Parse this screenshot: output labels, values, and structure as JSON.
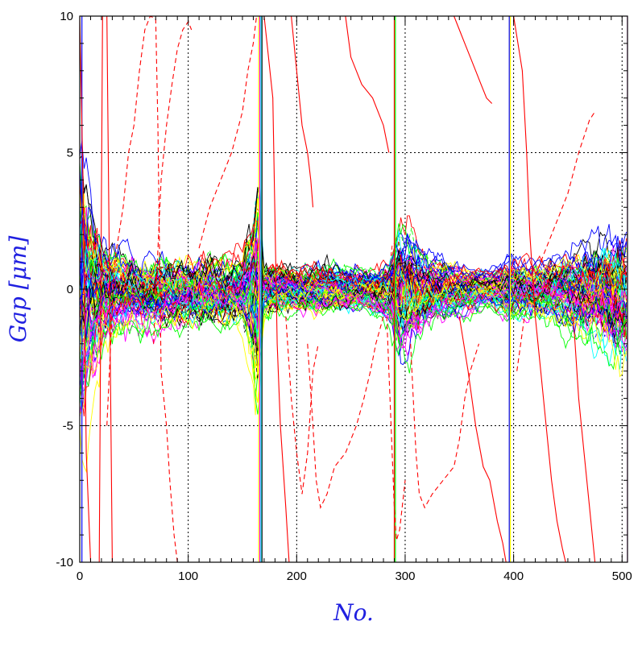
{
  "chart_data": {
    "type": "line",
    "title": "",
    "xlabel": "No.",
    "ylabel": "Gap [μm]",
    "label_color": "#2020e0",
    "xlim": [
      0,
      505
    ],
    "ylim": [
      -10,
      10
    ],
    "grid": true,
    "grid_style": "dotted",
    "x_ticks": [
      0,
      100,
      200,
      300,
      400,
      500
    ],
    "y_ticks": [
      -10,
      -5,
      0,
      5,
      10
    ],
    "x_tick_labels": [
      "0",
      "100",
      "200",
      "300",
      "400",
      "500"
    ],
    "y_tick_labels": [
      "-10",
      "-5",
      "0",
      "5",
      "10"
    ],
    "line_colors": [
      "#000000",
      "#ff0000",
      "#00ff00",
      "#0000ff",
      "#ffff00",
      "#ff00ff",
      "#00ffff"
    ],
    "series_count": 90,
    "envelope_note": "dense bundle of ~90 traces near 0; bursts near No. 0, 165, 290, 395, 505",
    "envelope": {
      "x": [
        0,
        10,
        25,
        50,
        100,
        150,
        165,
        170,
        200,
        230,
        260,
        285,
        295,
        320,
        350,
        380,
        395,
        420,
        450,
        480,
        505
      ],
      "amplitude": [
        8,
        5,
        2.5,
        1.8,
        1.8,
        1.7,
        6,
        1.5,
        1.2,
        1.4,
        1.1,
        1.5,
        3.5,
        1.8,
        1.2,
        0.9,
        1.5,
        1.3,
        1.8,
        2.6,
        3.5
      ]
    },
    "outlier_series": [
      {
        "color": "#ff0000",
        "dashed": false,
        "points": [
          [
            0,
            10
          ],
          [
            3,
            4
          ],
          [
            6,
            -6
          ],
          [
            10,
            -10
          ],
          [
            18,
            -10
          ],
          [
            21,
            10
          ],
          [
            25,
            10
          ],
          [
            30,
            -10
          ]
        ]
      },
      {
        "color": "#ff0000",
        "dashed": true,
        "points": [
          [
            25,
            -5
          ],
          [
            32,
            1
          ],
          [
            40,
            3
          ],
          [
            45,
            5
          ],
          [
            50,
            6
          ],
          [
            55,
            8
          ],
          [
            60,
            9.5
          ],
          [
            65,
            10
          ],
          [
            70,
            9.9
          ],
          [
            72,
            6
          ],
          [
            75,
            -3
          ],
          [
            80,
            -5
          ],
          [
            83,
            -7
          ],
          [
            87,
            -9
          ],
          [
            90,
            -10
          ]
        ]
      },
      {
        "color": "#ff0000",
        "dashed": true,
        "points": [
          [
            68,
            -2
          ],
          [
            75,
            4
          ],
          [
            80,
            6
          ],
          [
            85,
            7.5
          ],
          [
            90,
            8.8
          ],
          [
            95,
            9.5
          ],
          [
            100,
            9.8
          ],
          [
            103,
            9.5
          ]
        ]
      },
      {
        "color": "#ff0000",
        "dashed": true,
        "points": [
          [
            110,
            1.5
          ],
          [
            120,
            3
          ],
          [
            130,
            4
          ],
          [
            140,
            5
          ],
          [
            150,
            6.5
          ],
          [
            155,
            8
          ],
          [
            160,
            9
          ],
          [
            163,
            10
          ]
        ]
      },
      {
        "color": "#ff0000",
        "dashed": false,
        "points": [
          [
            170,
            10
          ],
          [
            178,
            7
          ],
          [
            182,
            -2
          ],
          [
            185,
            -5
          ],
          [
            190,
            -8
          ],
          [
            193,
            -10
          ]
        ]
      },
      {
        "color": "#ff0000",
        "dashed": true,
        "points": [
          [
            190,
            -1
          ],
          [
            195,
            -4
          ],
          [
            200,
            -6
          ],
          [
            205,
            -7.5
          ],
          [
            210,
            -6
          ],
          [
            215,
            -3
          ],
          [
            220,
            -2
          ]
        ]
      },
      {
        "color": "#ff0000",
        "dashed": false,
        "points": [
          [
            195,
            10
          ],
          [
            200,
            8
          ],
          [
            205,
            6
          ],
          [
            210,
            5
          ],
          [
            213,
            4
          ],
          [
            215,
            3
          ]
        ]
      },
      {
        "color": "#ff0000",
        "dashed": true,
        "points": [
          [
            210,
            -2
          ],
          [
            215,
            -5
          ],
          [
            218,
            -7
          ],
          [
            222,
            -8
          ],
          [
            228,
            -7.5
          ],
          [
            235,
            -6.5
          ],
          [
            245,
            -6
          ],
          [
            255,
            -5
          ],
          [
            262,
            -4
          ],
          [
            268,
            -3
          ],
          [
            273,
            -2
          ],
          [
            280,
            -1
          ]
        ]
      },
      {
        "color": "#ff0000",
        "dashed": false,
        "points": [
          [
            245,
            10
          ],
          [
            250,
            8.5
          ],
          [
            260,
            7.5
          ],
          [
            270,
            7
          ],
          [
            280,
            6
          ],
          [
            285,
            5
          ]
        ]
      },
      {
        "color": "#ff0000",
        "dashed": true,
        "points": [
          [
            283,
            -1
          ],
          [
            287,
            -5
          ],
          [
            290,
            -8
          ],
          [
            292,
            -9.2
          ],
          [
            295,
            -8.8
          ],
          [
            300,
            -7
          ]
        ]
      },
      {
        "color": "#ff0000",
        "dashed": true,
        "points": [
          [
            305,
            -2
          ],
          [
            310,
            -6
          ],
          [
            313,
            -7.5
          ],
          [
            318,
            -8
          ],
          [
            325,
            -7.5
          ],
          [
            335,
            -7
          ],
          [
            345,
            -6.5
          ],
          [
            350,
            -5.5
          ],
          [
            355,
            -4
          ],
          [
            360,
            -3
          ],
          [
            368,
            -2
          ]
        ]
      },
      {
        "color": "#ff0000",
        "dashed": false,
        "points": [
          [
            345,
            10
          ],
          [
            350,
            9.5
          ],
          [
            355,
            9
          ],
          [
            360,
            8.5
          ],
          [
            365,
            8
          ],
          [
            370,
            7.5
          ],
          [
            375,
            7
          ],
          [
            380,
            6.8
          ]
        ]
      },
      {
        "color": "#ff0000",
        "dashed": false,
        "points": [
          [
            350,
            -1
          ],
          [
            358,
            -3
          ],
          [
            365,
            -5
          ],
          [
            372,
            -6.5
          ],
          [
            378,
            -7
          ],
          [
            385,
            -8.5
          ],
          [
            390,
            -9.3
          ],
          [
            393,
            -10
          ]
        ]
      },
      {
        "color": "#ff0000",
        "dashed": false,
        "points": [
          [
            400,
            10
          ],
          [
            408,
            8
          ],
          [
            412,
            5
          ],
          [
            415,
            2
          ],
          [
            420,
            -1
          ],
          [
            425,
            -3
          ],
          [
            430,
            -5
          ],
          [
            435,
            -7
          ],
          [
            440,
            -8.5
          ],
          [
            445,
            -9.5
          ],
          [
            448,
            -10
          ]
        ]
      },
      {
        "color": "#ff0000",
        "dashed": true,
        "points": [
          [
            403,
            -3
          ],
          [
            410,
            -1
          ],
          [
            420,
            0.5
          ],
          [
            430,
            1.5
          ],
          [
            440,
            2.5
          ],
          [
            450,
            3.5
          ],
          [
            460,
            5
          ],
          [
            470,
            6.2
          ],
          [
            475,
            6.5
          ]
        ]
      },
      {
        "color": "#ff0000",
        "dashed": false,
        "points": [
          [
            455,
            -1
          ],
          [
            460,
            -4
          ],
          [
            465,
            -6
          ],
          [
            470,
            -8
          ],
          [
            475,
            -10
          ]
        ]
      }
    ]
  }
}
